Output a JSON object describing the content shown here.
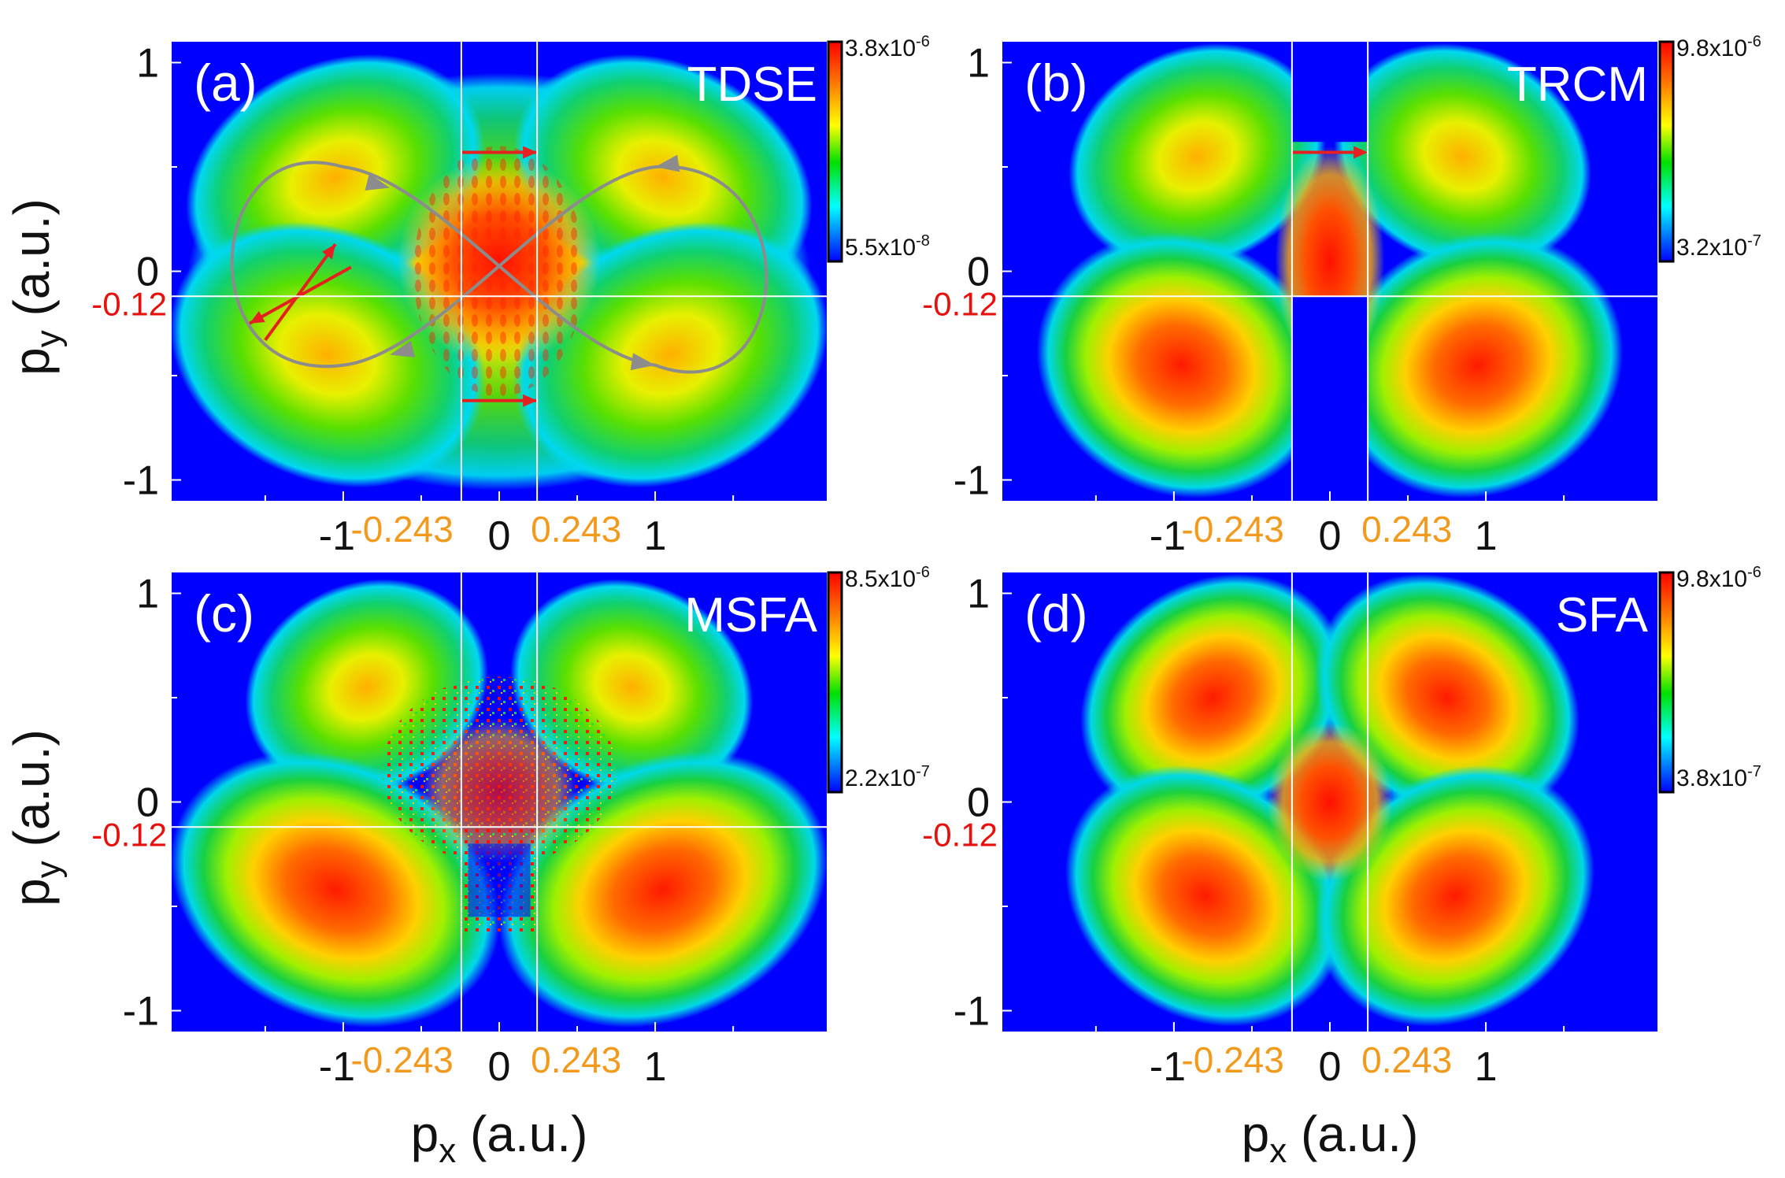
{
  "figure": {
    "ylabel_main": "p",
    "ylabel_sub": "y",
    "ylabel_unit": "(a.u.)",
    "xlabel_main": "p",
    "xlabel_sub": "x",
    "xlabel_unit": "(a.u.)",
    "colors": {
      "background": "#0000ff",
      "guide": "#ffffff",
      "marker_red": "#e8100c",
      "marker_orange": "#f39a1c",
      "trajectory": "#8c8c8c",
      "arrow": "#e42020"
    }
  },
  "chart_data": [
    {
      "type": "heatmap",
      "panel": "(a)",
      "method": "TDSE",
      "x_ticks": [
        "-1",
        "0",
        "1"
      ],
      "y_ticks": [
        "1",
        "0",
        "-1"
      ],
      "x_marks": [
        "-0.243",
        "0.243"
      ],
      "y_mark": "-0.12",
      "colorbar": {
        "max": "3.8x10",
        "max_exp": "-6",
        "min": "5.5x10",
        "min_exp": "-8"
      },
      "xlim": [
        -2.1,
        2.1
      ],
      "ylim": [
        -1.1,
        1.1
      ],
      "guides": {
        "x": [
          -0.243,
          0.243
        ],
        "y": -0.12
      },
      "shape": "tdse"
    },
    {
      "type": "heatmap",
      "panel": "(b)",
      "method": "TRCM",
      "x_ticks": [
        "-1",
        "0",
        "1"
      ],
      "y_ticks": [
        "1",
        "0",
        "-1"
      ],
      "x_marks": [
        "-0.243",
        "0.243"
      ],
      "y_mark": "-0.12",
      "colorbar": {
        "max": "9.8x10",
        "max_exp": "-6",
        "min": "3.2x10",
        "min_exp": "-7"
      },
      "xlim": [
        -2.1,
        2.1
      ],
      "ylim": [
        -1.1,
        1.1
      ],
      "guides": {
        "x": [
          -0.243,
          0.243
        ],
        "y": -0.12
      },
      "shape": "trcm"
    },
    {
      "type": "heatmap",
      "panel": "(c)",
      "method": "MSFA",
      "x_ticks": [
        "-1",
        "0",
        "1"
      ],
      "y_ticks": [
        "1",
        "0",
        "-1"
      ],
      "x_marks": [
        "-0.243",
        "0.243"
      ],
      "y_mark": "-0.12",
      "colorbar": {
        "max": "8.5x10",
        "max_exp": "-6",
        "min": "2.2x10",
        "min_exp": "-7"
      },
      "xlim": [
        -2.1,
        2.1
      ],
      "ylim": [
        -1.1,
        1.1
      ],
      "guides": {
        "x": [
          -0.243,
          0.243
        ],
        "y": -0.12
      },
      "shape": "msfa"
    },
    {
      "type": "heatmap",
      "panel": "(d)",
      "method": "SFA",
      "x_ticks": [
        "-1",
        "0",
        "1"
      ],
      "y_ticks": [
        "1",
        "0",
        "-1"
      ],
      "x_marks": [
        "-0.243",
        "0.243"
      ],
      "y_mark": "-0.12",
      "colorbar": {
        "max": "9.8x10",
        "max_exp": "-6",
        "min": "3.8x10",
        "min_exp": "-7"
      },
      "xlim": [
        -2.1,
        2.1
      ],
      "ylim": [
        -1.1,
        1.1
      ],
      "guides": {
        "x": [
          -0.243,
          0.243
        ],
        "y": null
      },
      "shape": "sfa"
    }
  ]
}
